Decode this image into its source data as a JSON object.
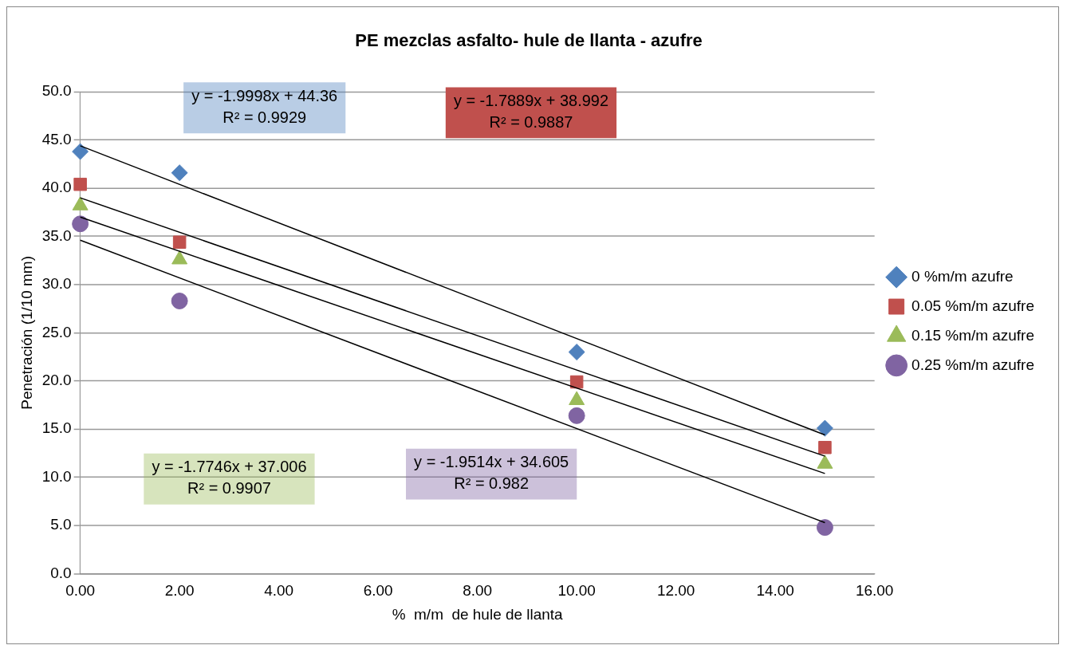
{
  "chart_data": {
    "type": "scatter",
    "title": "PE mezclas asfalto- hule de llanta - azufre",
    "xlabel": "%  m/m  de hule de llanta",
    "ylabel": "Penetración (1/10 mm)",
    "x": [
      0,
      2,
      10,
      15
    ],
    "series": [
      {
        "name": "0 %m/m azufre",
        "color": "#4f81bd",
        "marker": "diamond",
        "values": [
          43.8,
          41.6,
          23.0,
          15.1
        ]
      },
      {
        "name": "0.05 %m/m azufre",
        "color": "#c0504d",
        "marker": "square",
        "values": [
          40.4,
          34.4,
          19.9,
          13.1
        ]
      },
      {
        "name": "0.15 %m/m azufre",
        "color": "#9bbb59",
        "marker": "triangle",
        "values": [
          38.2,
          32.6,
          18.0,
          11.4
        ]
      },
      {
        "name": "0.25 %m/m azufre",
        "color": "#8064a2",
        "marker": "circle",
        "values": [
          36.3,
          28.3,
          16.4,
          4.8
        ]
      },
      {
        "type": "line",
        "color": "#000000",
        "values": [
          44.4,
          null,
          null,
          14.4
        ]
      },
      {
        "type": "line",
        "color": "#000000",
        "values": [
          39.0,
          null,
          null,
          12.2
        ]
      },
      {
        "type": "line",
        "color": "#000000",
        "values": [
          37.0,
          null,
          null,
          10.4
        ]
      },
      {
        "type": "line",
        "color": "#000000",
        "values": [
          34.6,
          null,
          null,
          5.3
        ]
      }
    ],
    "annotations": [
      "y = -1.9998x + 44.36\nR² = 0.9929",
      "y = -1.7889x + 38.992\nR² = 0.9887",
      "y = -1.7746x + 37.006\nR² = 0.9907",
      "y = -1.9514x + 34.605\nR² = 0.982"
    ],
    "xlim": [
      0,
      16
    ],
    "xticks": [
      {
        "value": 0,
        "label": "0.00"
      },
      {
        "value": 2,
        "label": "2.00"
      },
      {
        "value": 4,
        "label": "4.00"
      },
      {
        "value": 6,
        "label": "6.00"
      },
      {
        "value": 8,
        "label": "8.00"
      },
      {
        "value": 10,
        "label": "10.00"
      },
      {
        "value": 12,
        "label": "12.00"
      },
      {
        "value": 14,
        "label": "14.00"
      },
      {
        "value": 16,
        "label": "16.00"
      }
    ],
    "ylim": [
      0,
      50
    ],
    "yticks": [
      {
        "value": 0,
        "label": "0.0"
      },
      {
        "value": 5,
        "label": "5.0"
      },
      {
        "value": 10,
        "label": "10.0"
      },
      {
        "value": 15,
        "label": "15.0"
      },
      {
        "value": 20,
        "label": "20.0"
      },
      {
        "value": 25,
        "label": "25.0"
      },
      {
        "value": 30,
        "label": "30.0"
      },
      {
        "value": 35,
        "label": "35.0"
      },
      {
        "value": 40,
        "label": "40.0"
      },
      {
        "value": 45,
        "label": "45.0"
      },
      {
        "value": 50,
        "label": "50.0"
      }
    ],
    "grid": "y",
    "legend": "right"
  }
}
